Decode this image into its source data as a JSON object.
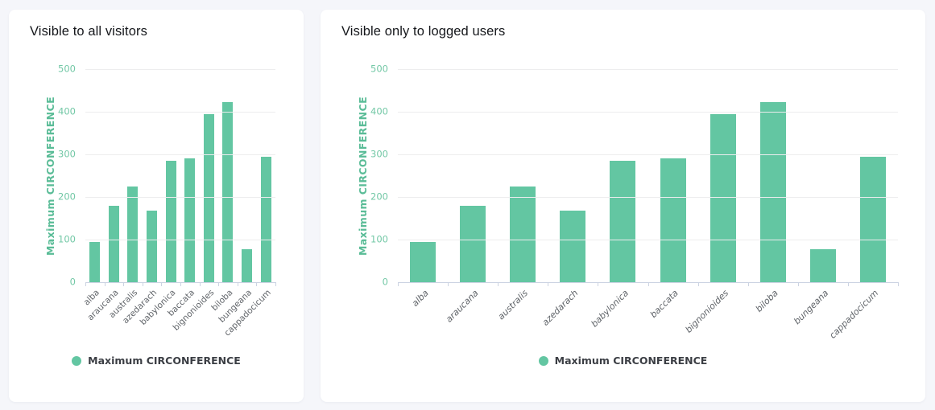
{
  "colors": {
    "page_bg": "#f5f6fa",
    "card_bg": "#ffffff",
    "bar": "#63c6a2",
    "axis_text": "#73c8a6",
    "axis_title": "#5abc97",
    "grid": "#ededee",
    "axis_line": "#ccd3e2",
    "label": "#606469",
    "title": "#15171b",
    "legend_text": "#3b3e44"
  },
  "cards": [
    {
      "title": "Visible to all visitors"
    },
    {
      "title": "Visible only to logged users"
    }
  ],
  "chart_data": [
    {
      "type": "bar",
      "title": "Visible to all visitors",
      "categories": [
        "alba",
        "araucana",
        "australis",
        "azedarach",
        "babylonica",
        "baccata",
        "bignonioides",
        "biloba",
        "bungeana",
        "cappadocicum"
      ],
      "values": [
        95,
        180,
        224,
        168,
        284,
        290,
        395,
        423,
        77,
        294
      ],
      "series_name": "Maximum CIRCONFERENCE",
      "xlabel": "",
      "ylabel": "Maximum CIRCONFERENCE",
      "ylim": [
        0,
        500
      ],
      "yticks": [
        0,
        100,
        200,
        300,
        400,
        500
      ],
      "grid": true,
      "legend": "Maximum CIRCONFERENCE",
      "legend_position": "bottom-center",
      "xtick_rotation": -45,
      "xtick_italic": false
    },
    {
      "type": "bar",
      "title": "Visible only to logged users",
      "categories": [
        "alba",
        "araucana",
        "australis",
        "azedarach",
        "babylonica",
        "baccata",
        "bignonioides",
        "biloba",
        "bungeana",
        "cappadocicum"
      ],
      "values": [
        95,
        180,
        224,
        168,
        284,
        290,
        395,
        423,
        77,
        294
      ],
      "series_name": "Maximum CIRCONFERENCE",
      "xlabel": "",
      "ylabel": "Maximum CIRCONFERENCE",
      "ylim": [
        0,
        500
      ],
      "yticks": [
        0,
        100,
        200,
        300,
        400,
        500
      ],
      "grid": true,
      "legend": "Maximum CIRCONFERENCE",
      "legend_position": "bottom-center",
      "xtick_rotation": -45,
      "xtick_italic": true
    }
  ]
}
